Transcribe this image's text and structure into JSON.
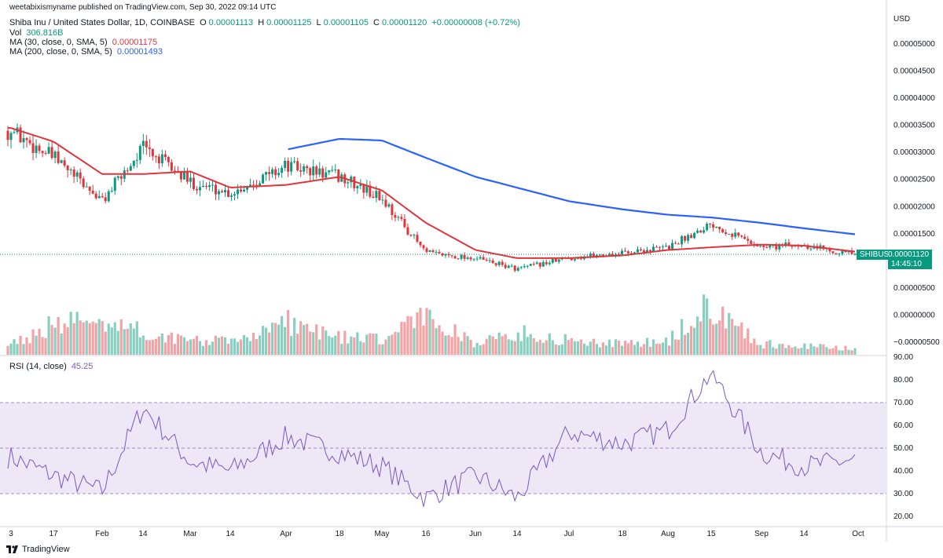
{
  "watermark": "weetabixismyname published on TradingView.com, Sep 30, 2022 09:14 UTC",
  "header": {
    "symbol": "Shiba Inu / United States Dollar, 1D, COINBASE",
    "open_label": "O",
    "open": "0.00001113",
    "high_label": "H",
    "high": "0.00001125",
    "low_label": "L",
    "low": "0.00001105",
    "close_label": "C",
    "close": "0.00001120",
    "change": "+0.00000008 (+0.72%)",
    "vol_label": "Vol",
    "vol": "306.816B",
    "ma30_label": "MA (30, close, 0, SMA, 5)",
    "ma30": "0.00001175",
    "ma200_label": "MA (200, close, 0, SMA, 5)",
    "ma200": "0.00001493",
    "rsi_label": "RSI (14, close)",
    "rsi": "45.25"
  },
  "price_axis": {
    "currency": "USD",
    "ticks": [
      "0.00005000",
      "0.00004500",
      "0.00004000",
      "0.00003500",
      "0.00003000",
      "0.00002500",
      "0.00002000",
      "0.00001500",
      "0.00000500",
      "0.00000000",
      "−0.00000500"
    ],
    "last_symbol": "SHIBUSD",
    "last_price": "0.00001120",
    "countdown": "14:45:10"
  },
  "rsi_axis": {
    "ticks": [
      "90.00",
      "80.00",
      "70.00",
      "60.00",
      "50.00",
      "40.00",
      "30.00",
      "20.00"
    ]
  },
  "time_axis": {
    "labels": [
      "3",
      "17",
      "Feb",
      "14",
      "Mar",
      "14",
      "Apr",
      "18",
      "May",
      "16",
      "Jun",
      "14",
      "Jul",
      "18",
      "Aug",
      "15",
      "Sep",
      "14",
      "Oct"
    ]
  },
  "footer": {
    "logo_text": "TradingView"
  },
  "colors": {
    "up": "#089981",
    "down": "#e0353b",
    "ma30": "#e0353b",
    "ma200": "#2962ff",
    "rsi": "#7e57c2",
    "rsi_band": "#ede7f6"
  },
  "chart_data": {
    "type": "candlestick",
    "title": "Shiba Inu / United States Dollar, 1D, COINBASE",
    "ylim": [
      -5e-06,
      5e-05
    ],
    "rsi_ylim": [
      20,
      90
    ],
    "rsi_bands": [
      30,
      50,
      70
    ],
    "dates": [
      "2022-01-03",
      "2022-01-17",
      "2022-02-01",
      "2022-02-14",
      "2022-03-01",
      "2022-03-14",
      "2022-04-01",
      "2022-04-18",
      "2022-05-01",
      "2022-05-16",
      "2022-06-01",
      "2022-06-14",
      "2022-07-01",
      "2022-07-18",
      "2022-08-01",
      "2022-08-15",
      "2022-09-01",
      "2022-09-14",
      "2022-09-30"
    ],
    "close": [
      3.4e-05,
      2.9e-05,
      2.1e-05,
      3.1e-05,
      2.45e-05,
      2.25e-05,
      2.75e-05,
      2.55e-05,
      2.15e-05,
      1.15e-05,
      1.05e-05,
      8.5e-06,
      1.05e-05,
      1.15e-05,
      1.25e-05,
      1.7e-05,
      1.25e-05,
      1.3e-05,
      1.12e-05
    ],
    "ma30": [
      3.45e-05,
      3.2e-05,
      2.6e-05,
      2.6e-05,
      2.65e-05,
      2.35e-05,
      2.4e-05,
      2.55e-05,
      2.3e-05,
      1.7e-05,
      1.2e-05,
      1.05e-05,
      1.05e-05,
      1.1e-05,
      1.2e-05,
      1.25e-05,
      1.3e-05,
      1.28e-05,
      1.17e-05
    ],
    "ma200": [
      null,
      null,
      null,
      null,
      null,
      null,
      3.05e-05,
      3.25e-05,
      3.22e-05,
      2.9e-05,
      2.55e-05,
      2.35e-05,
      2.1e-05,
      1.95e-05,
      1.85e-05,
      1.8e-05,
      1.7e-05,
      1.6e-05,
      1.49e-05
    ],
    "volume_relative": [
      0.15,
      0.4,
      0.5,
      0.3,
      0.2,
      0.18,
      0.45,
      0.25,
      0.2,
      0.55,
      0.15,
      0.3,
      0.2,
      0.15,
      0.18,
      0.7,
      0.15,
      0.12,
      0.08
    ],
    "rsi": [
      46,
      38,
      31,
      68,
      44,
      40,
      55,
      48,
      42,
      28,
      38,
      28,
      57,
      52,
      58,
      83,
      48,
      42,
      45
    ]
  }
}
